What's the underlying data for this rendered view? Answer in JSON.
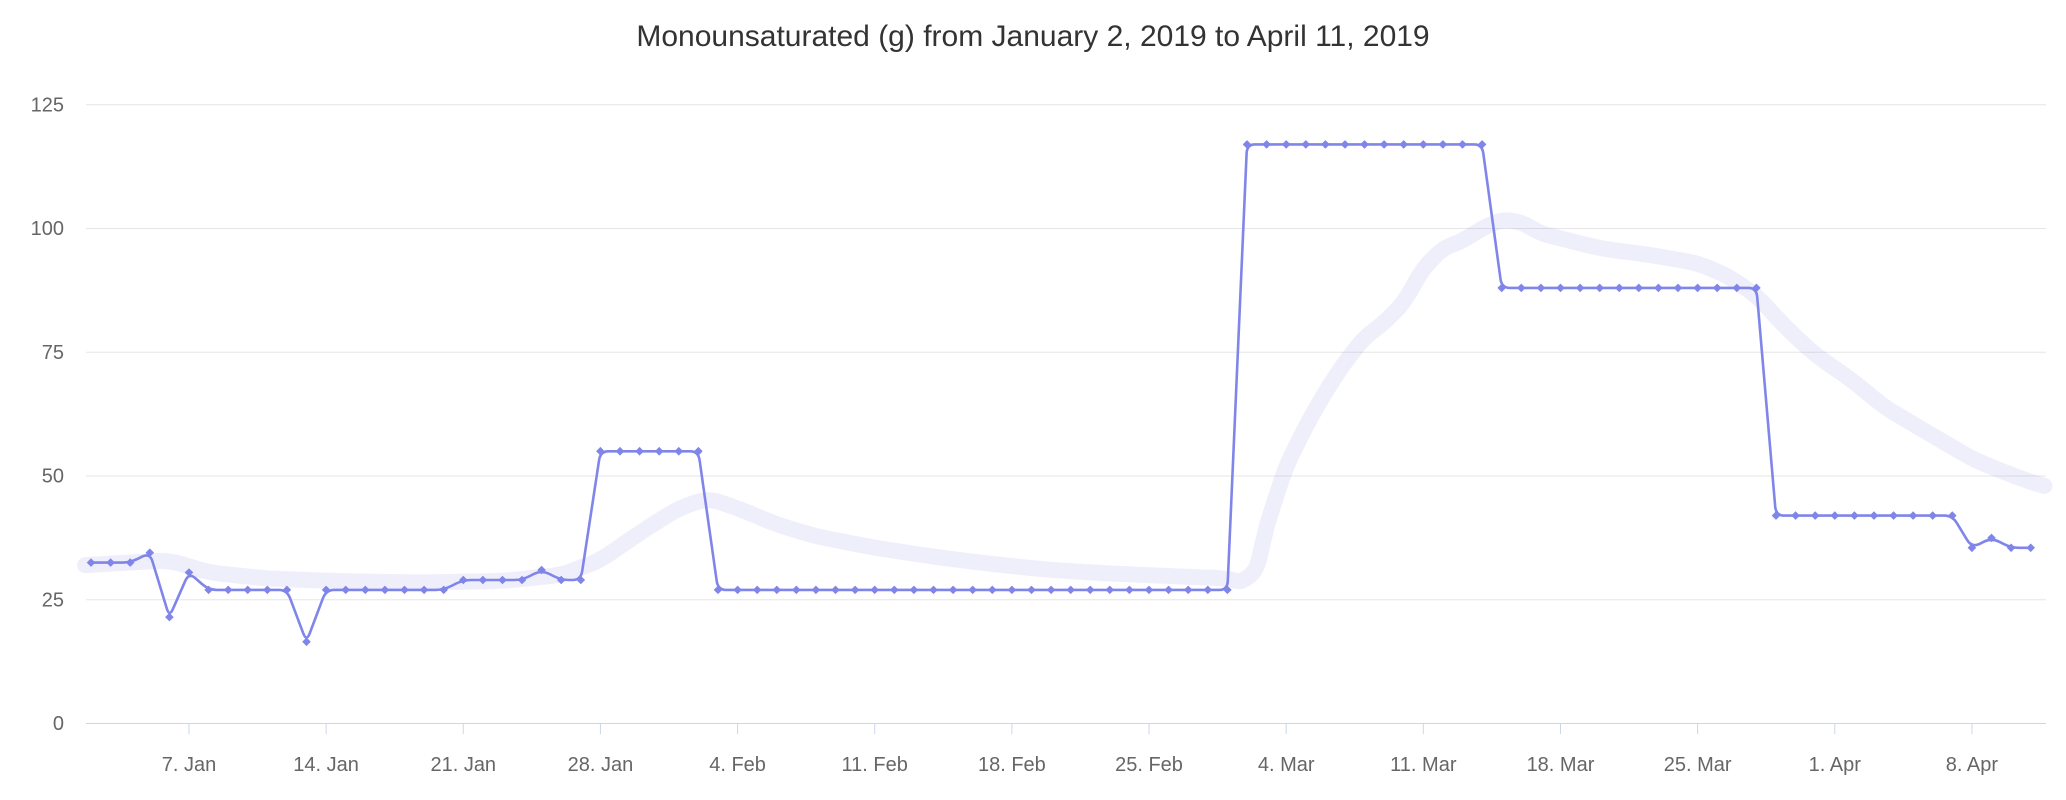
{
  "chart_data": {
    "type": "line",
    "title": "Monounsaturated (g) from January 2, 2019 to April 11, 2019",
    "xlabel": "",
    "ylabel": "",
    "x_range": [
      "January 2, 2019",
      "April 11, 2019"
    ],
    "x_unit": "day",
    "ylim": [
      0,
      131
    ],
    "grid": "horizontal",
    "legend": "none",
    "colors": {
      "line": "#8085e9",
      "marker": "#8085e9",
      "trend_band": "rgba(128,133,233,0.13)",
      "gridline": "#e6e6e6",
      "axis_line": "#ccd6eb",
      "tick": "#ccd6eb",
      "axis_text": "#666666",
      "title_text": "#333333",
      "background": "#ffffff"
    },
    "y_axis": {
      "ticks": [
        0,
        25,
        50,
        75,
        100,
        125
      ]
    },
    "x_axis": {
      "ticks": [
        {
          "day": 5,
          "label": "7. Jan"
        },
        {
          "day": 12,
          "label": "14. Jan"
        },
        {
          "day": 19,
          "label": "21. Jan"
        },
        {
          "day": 26,
          "label": "28. Jan"
        },
        {
          "day": 33,
          "label": "4. Feb"
        },
        {
          "day": 40,
          "label": "11. Feb"
        },
        {
          "day": 47,
          "label": "18. Feb"
        },
        {
          "day": 54,
          "label": "25. Feb"
        },
        {
          "day": 61,
          "label": "4. Mar"
        },
        {
          "day": 68,
          "label": "11. Mar"
        },
        {
          "day": 75,
          "label": "18. Mar"
        },
        {
          "day": 82,
          "label": "25. Mar"
        },
        {
          "day": 89,
          "label": "1. Apr"
        },
        {
          "day": 96,
          "label": "8. Apr"
        }
      ]
    },
    "series": [
      {
        "name": "Monounsaturated (g)",
        "style": "spline-with-diamond-markers",
        "start_date": "2019-01-02",
        "interval_days": 1,
        "values": [
          32.5,
          32.5,
          32.5,
          34.5,
          21.5,
          30.5,
          27,
          27,
          27,
          27,
          27,
          16.5,
          27,
          27,
          27,
          27,
          27,
          27,
          27,
          29,
          29,
          29,
          29,
          31,
          29,
          29,
          55,
          55,
          55,
          55,
          55,
          55,
          27,
          27,
          27,
          27,
          27,
          27,
          27,
          27,
          27,
          27,
          27,
          27,
          27,
          27,
          27,
          27,
          27,
          27,
          27,
          27,
          27,
          27,
          27,
          27,
          27,
          27,
          27,
          117,
          117,
          117,
          117,
          117,
          117,
          117,
          117,
          117,
          117,
          117,
          117,
          117,
          88,
          88,
          88,
          88,
          88,
          88,
          88,
          88,
          88,
          88,
          88,
          88,
          88,
          88,
          42,
          42,
          42,
          42,
          42,
          42,
          42,
          42,
          42,
          42,
          35.5,
          37.5,
          35.5,
          35.5
        ]
      },
      {
        "name": "trend",
        "style": "wide-translucent-band",
        "stroke_width": 16,
        "points_day_value": [
          [
            -0.3,
            32
          ],
          [
            2,
            32.5
          ],
          [
            4,
            33
          ],
          [
            6,
            30.5
          ],
          [
            9,
            29.3
          ],
          [
            13,
            28.7
          ],
          [
            17,
            28.5
          ],
          [
            21,
            28.8
          ],
          [
            24,
            30
          ],
          [
            25,
            31.5
          ],
          [
            26,
            33
          ],
          [
            28,
            38.5
          ],
          [
            30,
            43.5
          ],
          [
            31.5,
            45.5
          ],
          [
            33,
            43.5
          ],
          [
            35,
            40.2
          ],
          [
            37,
            37.8
          ],
          [
            40,
            35.5
          ],
          [
            43,
            33.7
          ],
          [
            46,
            32.2
          ],
          [
            49,
            31
          ],
          [
            52,
            30.3
          ],
          [
            55,
            29.8
          ],
          [
            58,
            29.3
          ],
          [
            58.7,
            28.5
          ],
          [
            59.5,
            31
          ],
          [
            60,
            40
          ],
          [
            61,
            52
          ],
          [
            62,
            60
          ],
          [
            63,
            67
          ],
          [
            64,
            73
          ],
          [
            65,
            78
          ],
          [
            66,
            81
          ],
          [
            67,
            85
          ],
          [
            68,
            92
          ],
          [
            69,
            96
          ],
          [
            70,
            97.5
          ],
          [
            71,
            100
          ],
          [
            72,
            101.8
          ],
          [
            73,
            101.3
          ],
          [
            74,
            99
          ],
          [
            75,
            98
          ],
          [
            77,
            96
          ],
          [
            79.5,
            94.7
          ],
          [
            82,
            93
          ],
          [
            83.5,
            90.5
          ],
          [
            85,
            86.5
          ],
          [
            86.5,
            80
          ],
          [
            88,
            74.5
          ],
          [
            90,
            69
          ],
          [
            91.5,
            64
          ],
          [
            93,
            60.5
          ],
          [
            94.5,
            57
          ],
          [
            96,
            53.5
          ],
          [
            97.5,
            51
          ],
          [
            99,
            48.8
          ],
          [
            99.7,
            48
          ]
        ]
      }
    ]
  }
}
